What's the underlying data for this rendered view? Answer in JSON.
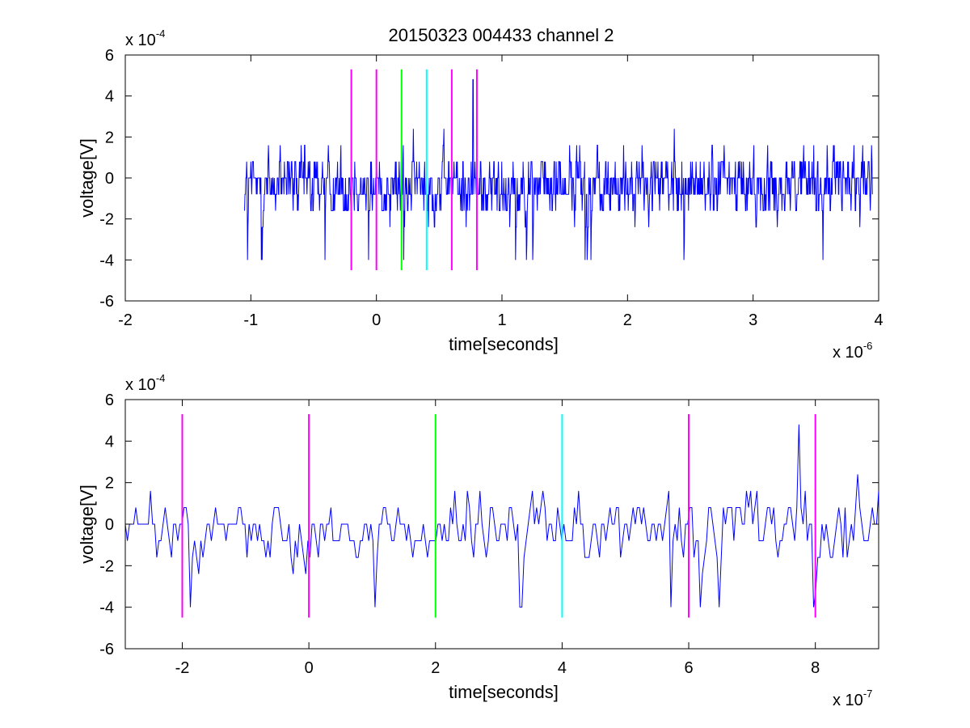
{
  "figure": {
    "title": "20150323 004433 channel 2",
    "background": "#ffffff"
  },
  "colors": {
    "signal": "#0000ff",
    "magenta": "#ff00ff",
    "green": "#00ff00",
    "cyan": "#00ffff",
    "axes": "#000000"
  },
  "chart_data": [
    {
      "type": "line",
      "title": "20150323 004433 channel 2",
      "xlabel": "time[seconds]",
      "ylabel": "voltage[V]",
      "x_multiplier_label": "x 10",
      "x_multiplier_exp": "-6",
      "y_multiplier_label": "x 10",
      "y_multiplier_exp": "-4",
      "xlim": [
        -2,
        4
      ],
      "ylim": [
        -6,
        6
      ],
      "x_ticks": [
        "-2",
        "-1",
        "0",
        "1",
        "2",
        "3",
        "4"
      ],
      "x_tick_values": [
        -2,
        -1,
        0,
        1,
        2,
        3,
        4
      ],
      "y_ticks": [
        "-6",
        "-4",
        "-2",
        "0",
        "2",
        "4",
        "6"
      ],
      "y_tick_values": [
        -6,
        -4,
        -2,
        0,
        2,
        4,
        6
      ],
      "grid": false,
      "series": [
        {
          "kind": "noise-trace",
          "color": "#0000ff",
          "x_start": -1.05,
          "x_end": 3.95,
          "y_min": -4.0,
          "y_max": 4.8,
          "y_mean": -0.3
        }
      ],
      "markers": [
        {
          "x": -0.2,
          "y_range": [
            -4.5,
            5.3
          ],
          "color": "#ff00ff"
        },
        {
          "x": 0.0,
          "y_range": [
            -4.5,
            5.3
          ],
          "color": "#ff00ff"
        },
        {
          "x": 0.2,
          "y_range": [
            -4.5,
            5.3
          ],
          "color": "#00ff00"
        },
        {
          "x": 0.4,
          "y_range": [
            -4.5,
            5.3
          ],
          "color": "#00ffff"
        },
        {
          "x": 0.6,
          "y_range": [
            -4.5,
            5.3
          ],
          "color": "#ff00ff"
        },
        {
          "x": 0.8,
          "y_range": [
            -4.5,
            5.3
          ],
          "color": "#ff00ff"
        }
      ]
    },
    {
      "type": "line",
      "title": "",
      "xlabel": "time[seconds]",
      "ylabel": "voltage[V]",
      "x_multiplier_label": "x 10",
      "x_multiplier_exp": "-7",
      "y_multiplier_label": "x 10",
      "y_multiplier_exp": "-4",
      "xlim": [
        -2.9,
        9.0
      ],
      "ylim": [
        -6,
        6
      ],
      "x_ticks": [
        "-2",
        "0",
        "2",
        "4",
        "6",
        "8"
      ],
      "x_tick_values": [
        -2,
        0,
        2,
        4,
        6,
        8
      ],
      "y_ticks": [
        "-6",
        "-4",
        "-2",
        "0",
        "2",
        "4",
        "6"
      ],
      "y_tick_values": [
        -6,
        -4,
        -2,
        0,
        2,
        4,
        6
      ],
      "grid": false,
      "series": [
        {
          "kind": "noise-trace",
          "color": "#0000ff",
          "x_start": -2.9,
          "x_end": 9.0,
          "y_min": -4.0,
          "y_max": 4.8,
          "y_mean": -0.2
        }
      ],
      "markers": [
        {
          "x": -2,
          "y_range": [
            -4.5,
            5.3
          ],
          "color": "#ff00ff"
        },
        {
          "x": 0,
          "y_range": [
            -4.5,
            5.3
          ],
          "color": "#ff00ff"
        },
        {
          "x": 2,
          "y_range": [
            -4.5,
            5.3
          ],
          "color": "#00ff00"
        },
        {
          "x": 4,
          "y_range": [
            -4.5,
            5.3
          ],
          "color": "#00ffff"
        },
        {
          "x": 6,
          "y_range": [
            -4.5,
            5.3
          ],
          "color": "#ff00ff"
        },
        {
          "x": 8,
          "y_range": [
            -4.5,
            5.3
          ],
          "color": "#ff00ff"
        }
      ]
    }
  ]
}
